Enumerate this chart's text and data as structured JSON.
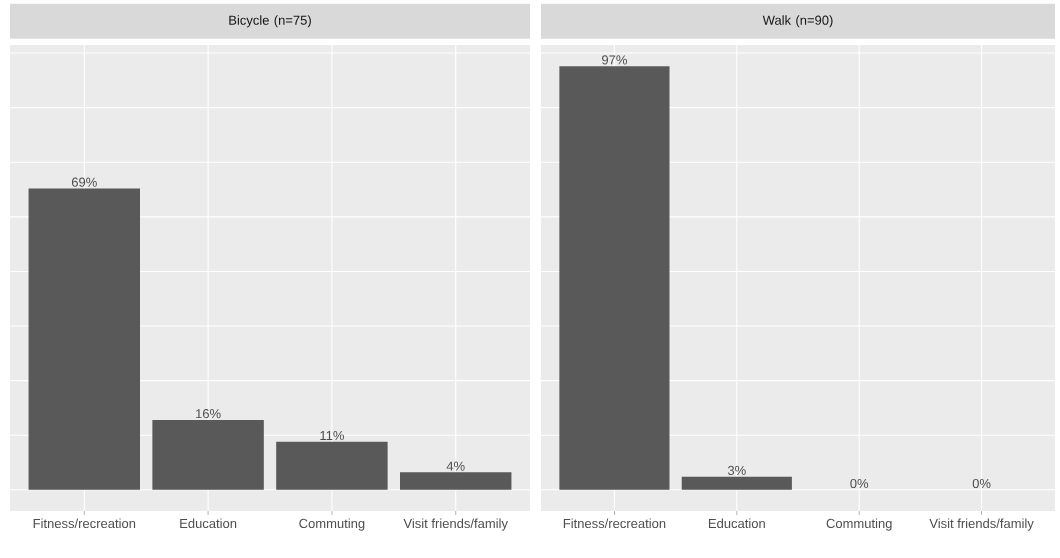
{
  "chart_data": [
    {
      "type": "bar",
      "title": "Bicycle (n=75)",
      "categories": [
        "Fitness/recreation",
        "Education",
        "Commuting",
        "Visit friends/family"
      ],
      "values": [
        69,
        16,
        11,
        4
      ],
      "value_labels": [
        "69%",
        "16%",
        "11%",
        "4%"
      ],
      "color": "#595959",
      "ylim": [
        -4.85,
        101.85
      ],
      "yticks": [
        {
          "value": 0,
          "label": null
        },
        {
          "value": 12.5,
          "label": null
        },
        {
          "value": 25,
          "label": null
        },
        {
          "value": 37.5,
          "label": null
        },
        {
          "value": 50,
          "label": null
        },
        {
          "value": 62.5,
          "label": null
        },
        {
          "value": 75,
          "label": null
        },
        {
          "value": 87.5,
          "label": null
        },
        {
          "value": 100,
          "label": null
        }
      ],
      "tick_labels": "x",
      "grid": true
    },
    {
      "type": "bar",
      "title": "Walk (n=90)",
      "categories": [
        "Fitness/recreation",
        "Education",
        "Commuting",
        "Visit friends/family"
      ],
      "values": [
        97,
        3,
        0,
        0
      ],
      "value_labels": [
        "97%",
        "3%",
        "0%",
        "0%"
      ],
      "color": "#595959",
      "ylim": [
        -4.85,
        101.85
      ],
      "yticks": [
        {
          "value": 0,
          "label": null
        },
        {
          "value": 12.5,
          "label": null
        },
        {
          "value": 25,
          "label": null
        },
        {
          "value": 37.5,
          "label": null
        },
        {
          "value": 50,
          "label": null
        },
        {
          "value": 62.5,
          "label": null
        },
        {
          "value": 75,
          "label": null
        },
        {
          "value": 87.5,
          "label": null
        },
        {
          "value": 100,
          "label": null
        }
      ],
      "tick_labels": "x",
      "grid": true
    }
  ]
}
